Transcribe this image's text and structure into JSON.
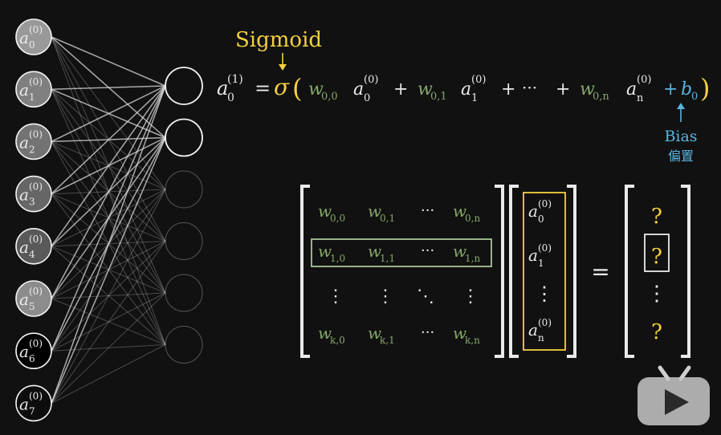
{
  "input_layer": {
    "neurons": [
      {
        "symbol": "a",
        "sub": "0",
        "sup": "(0)",
        "activation": 0.6
      },
      {
        "symbol": "a",
        "sub": "1",
        "sup": "(0)",
        "activation": 0.5
      },
      {
        "symbol": "a",
        "sub": "2",
        "sup": "(0)",
        "activation": 0.45
      },
      {
        "symbol": "a",
        "sub": "3",
        "sup": "(0)",
        "activation": 0.4
      },
      {
        "symbol": "a",
        "sub": "4",
        "sup": "(0)",
        "activation": 0.35
      },
      {
        "symbol": "a",
        "sub": "5",
        "sup": "(0)",
        "activation": 0.55
      },
      {
        "symbol": "a",
        "sub": "6",
        "sup": "(0)",
        "activation": 0.0
      },
      {
        "symbol": "a",
        "sub": "7",
        "sup": "(0)",
        "activation": 0.05
      }
    ]
  },
  "output_layer": {
    "neuron_count": 6,
    "highlighted": [
      0,
      1
    ]
  },
  "equation": {
    "sigmoid_label": "Sigmoid",
    "lhs": {
      "symbol": "a",
      "sub": "0",
      "sup": "(1)"
    },
    "equals": "=",
    "sigma": "σ",
    "open_paren": "(",
    "close_paren": ")",
    "terms": [
      {
        "w": "w",
        "wsub": "0,0",
        "a": "a",
        "asub": "0",
        "asup": "(0)"
      },
      {
        "w": "w",
        "wsub": "0,1",
        "a": "a",
        "asub": "1",
        "asup": "(0)"
      },
      {
        "w": "w",
        "wsub": "0,n",
        "a": "a",
        "asub": "n",
        "asup": "(0)"
      }
    ],
    "plus": "+",
    "cdots": "···",
    "bias": {
      "symbol": "b",
      "sub": "0"
    },
    "bias_label": "Bias",
    "bias_label_cn": "偏置"
  },
  "matrix": {
    "rows": [
      {
        "cells": [
          {
            "w": "w",
            "sub": "0,0"
          },
          {
            "w": "w",
            "sub": "0,1"
          },
          {
            "dots": "···"
          },
          {
            "w": "w",
            "sub": "0,n"
          }
        ]
      },
      {
        "cells": [
          {
            "w": "w",
            "sub": "1,0"
          },
          {
            "w": "w",
            "sub": "1,1"
          },
          {
            "dots": "···"
          },
          {
            "w": "w",
            "sub": "1,n"
          }
        ]
      },
      {
        "cells": [
          {
            "dots": "⋮"
          },
          {
            "dots": "⋮"
          },
          {
            "dots": "⋱"
          },
          {
            "dots": "⋮"
          }
        ]
      },
      {
        "cells": [
          {
            "w": "w",
            "sub": "k,0"
          },
          {
            "w": "w",
            "sub": "k,1"
          },
          {
            "dots": "···"
          },
          {
            "w": "w",
            "sub": "k,n"
          }
        ]
      }
    ],
    "highlighted_row": 1
  },
  "vector": {
    "entries": [
      {
        "a": "a",
        "sub": "0",
        "sup": "(0)"
      },
      {
        "a": "a",
        "sub": "1",
        "sup": "(0)"
      },
      {
        "dots": "⋮"
      },
      {
        "a": "a",
        "sub": "n",
        "sup": "(0)"
      }
    ]
  },
  "equals_sign": "=",
  "result": {
    "entries": [
      "?",
      "?",
      "⋮",
      "?"
    ],
    "highlighted": 1
  },
  "colors": {
    "background": "#111111",
    "weight": "#86a86a",
    "sigmoid": "#f4d03f",
    "bias": "#58b4e0",
    "text": "#eaeaea"
  },
  "player": {
    "icon": "play-icon"
  }
}
